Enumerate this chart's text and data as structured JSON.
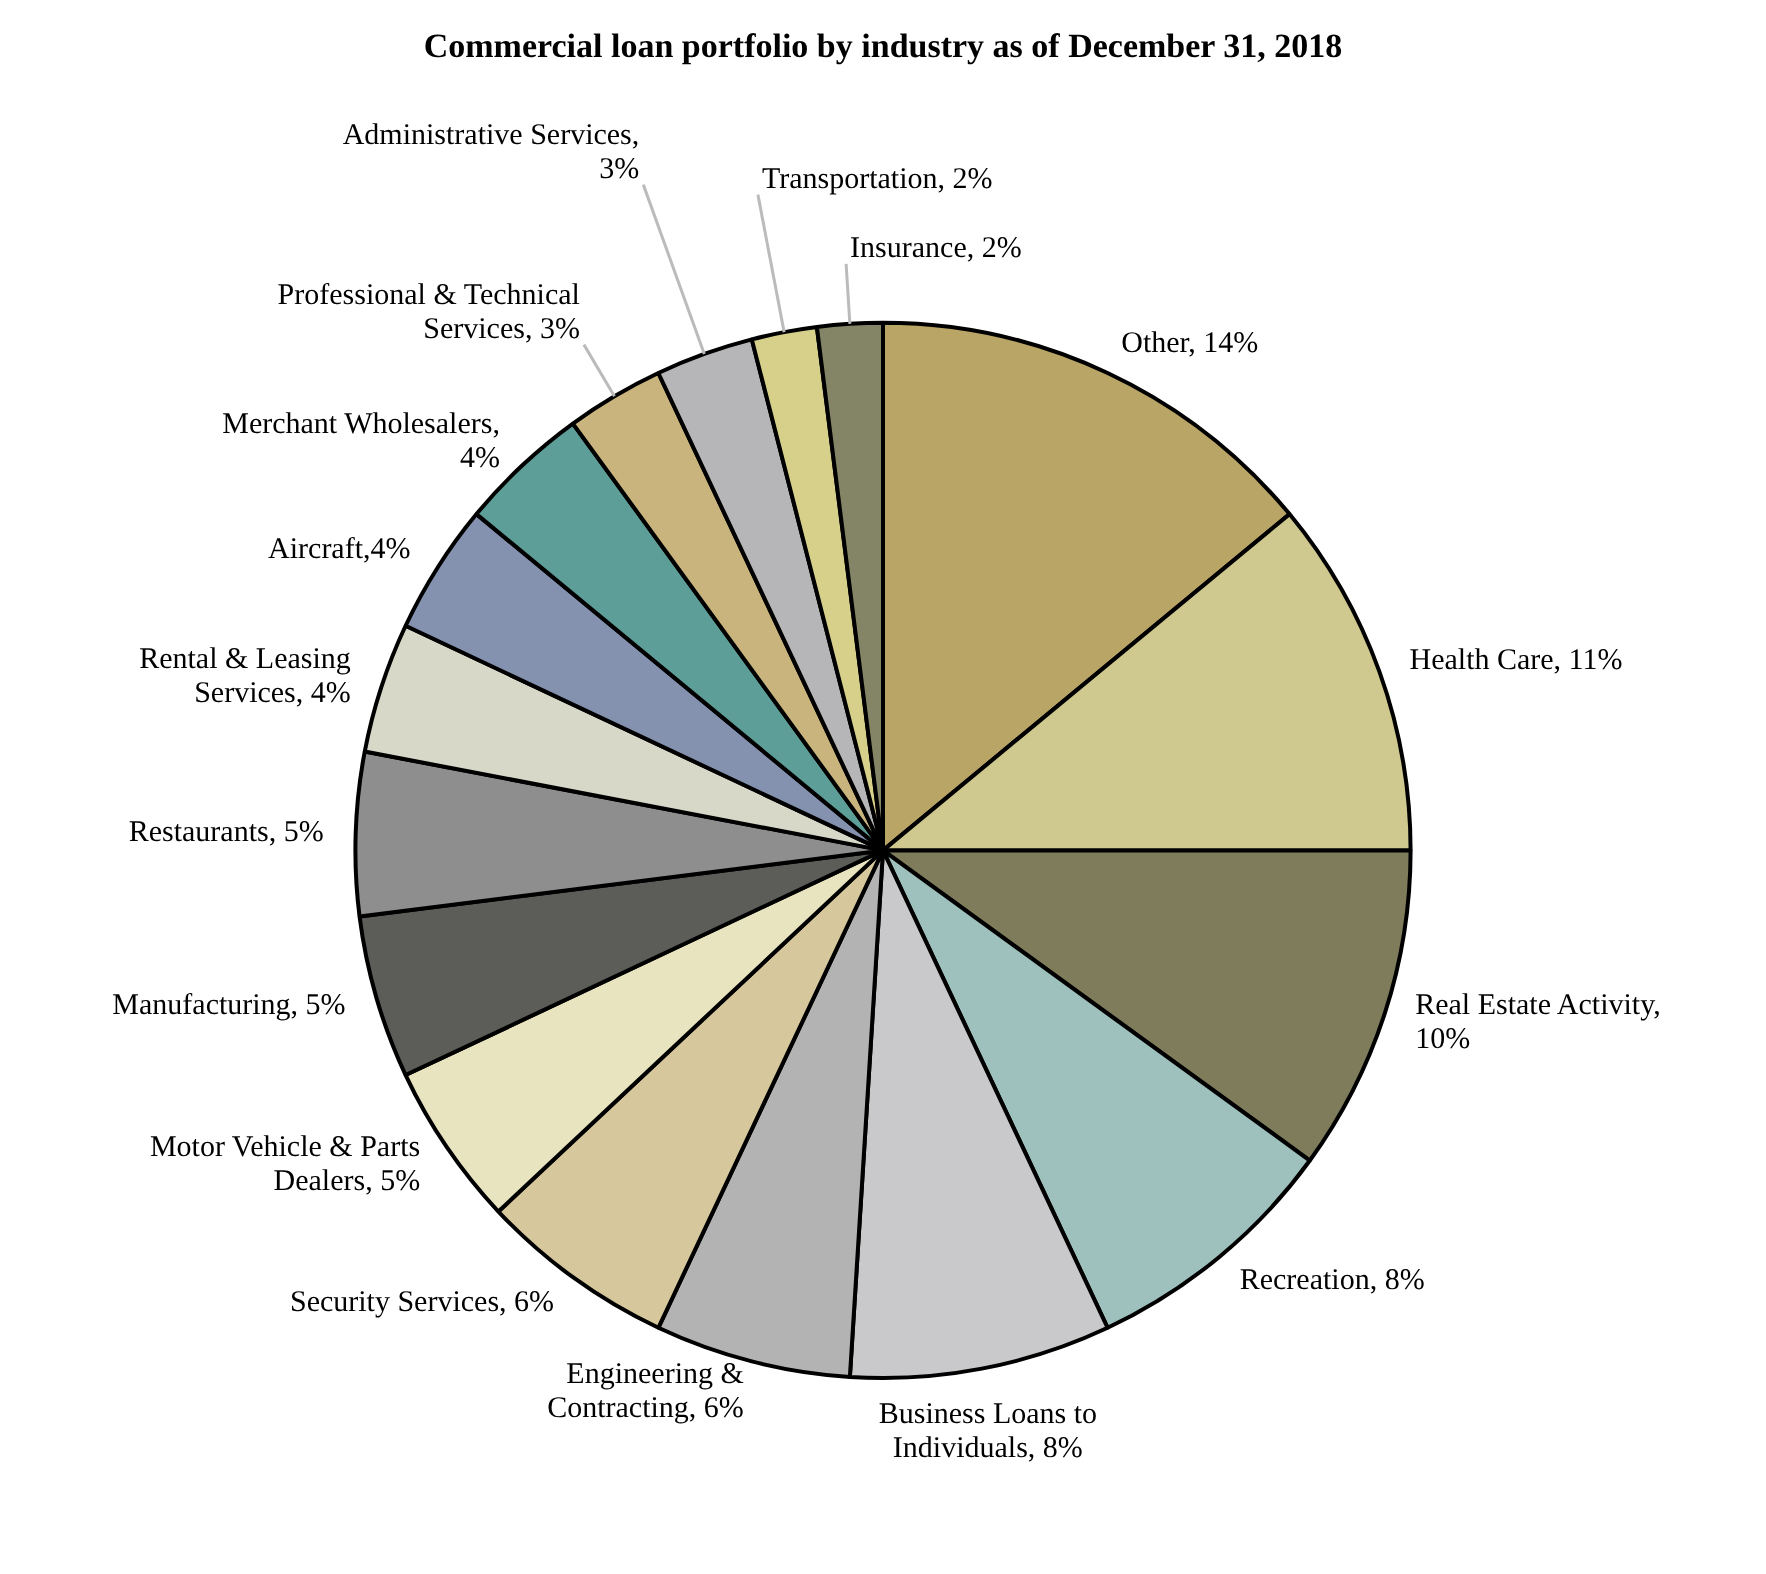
{
  "chart_data": {
    "type": "pie",
    "title": "Commercial loan portfolio by industry as of December 31, 2018",
    "categories": [
      "Other, 14%",
      "Health Care, 11%",
      "Real Estate Activity, 10%",
      "Recreation, 8%",
      "Business Loans to Individuals, 8%",
      "Engineering & Contracting, 6%",
      "Security Services, 6%",
      "Motor Vehicle & Parts Dealers, 5%",
      "Manufacturing, 5%",
      "Restaurants, 5%",
      "Rental & Leasing Services, 4%",
      "Aircraft,4%",
      "Merchant Wholesalers, 4%",
      "Professional & Technical Services, 3%",
      "Administrative Services, 3%",
      "Transportation, 2%",
      "Insurance, 2%"
    ],
    "values": [
      14,
      11,
      10,
      8,
      8,
      6,
      6,
      5,
      5,
      5,
      4,
      4,
      4,
      3,
      3,
      2,
      2
    ],
    "colors": [
      "#b9a565",
      "#cfc98f",
      "#7f7c5c",
      "#9fc1bd",
      "#c9c9cb",
      "#b3b3b3",
      "#d6c89c",
      "#e8e4c0",
      "#5c5d59",
      "#8e8e8e",
      "#d8d8c8",
      "#8492b0",
      "#5e9e98",
      "#c8b47c",
      "#b6b6b8",
      "#d6d08a",
      "#848467"
    ],
    "legend": false
  }
}
